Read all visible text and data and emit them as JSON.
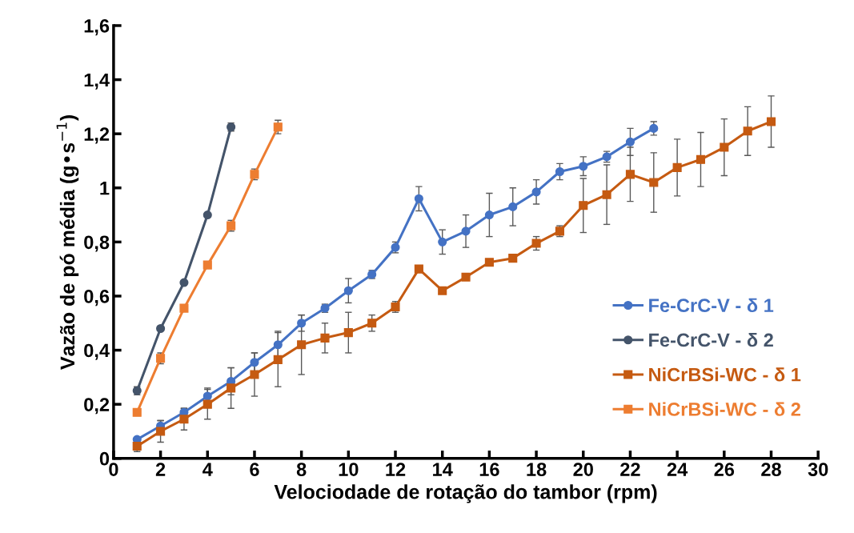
{
  "chart_data": {
    "type": "line",
    "xlabel": "Velociodade de rotação do tambor (rpm)",
    "ylabel": "Vazão de pó média (g•s$^{−1}$)",
    "xlim": [
      0,
      30
    ],
    "xticks": [
      0,
      2,
      4,
      6,
      8,
      10,
      12,
      14,
      16,
      18,
      20,
      22,
      24,
      26,
      28,
      30
    ],
    "ylim": [
      0,
      1.6
    ],
    "yticks": [
      0,
      {
        "value": 0.2,
        "label": "0,2"
      },
      {
        "value": 0.4,
        "label": "0,4"
      },
      {
        "value": 0.6,
        "label": "0,6"
      },
      {
        "value": 0.8,
        "label": "0,8"
      },
      1,
      {
        "value": 1.2,
        "label": "1,2"
      },
      {
        "value": 1.4,
        "label": "1,4"
      },
      {
        "value": 1.6,
        "label": "1,6"
      }
    ],
    "grid": false,
    "legend": "bottom right",
    "series": [
      {
        "name": "Fe-CrC-V - δ 1",
        "color": "#4472c4",
        "marker": "circle",
        "x": [
          1,
          2,
          3,
          4,
          5,
          6,
          7,
          8,
          9,
          10,
          11,
          12,
          13,
          14,
          15,
          16,
          17,
          18,
          19,
          20,
          21,
          22,
          23
        ],
        "values": [
          0.07,
          0.12,
          0.17,
          0.23,
          0.285,
          0.355,
          0.42,
          0.5,
          0.555,
          0.62,
          0.68,
          0.78,
          0.96,
          0.8,
          0.84,
          0.9,
          0.93,
          0.985,
          1.06,
          1.08,
          1.115,
          1.17,
          1.22
        ],
        "errors": [
          null,
          0.02,
          0.015,
          0.03,
          0.05,
          0.035,
          0.05,
          0.03,
          0.015,
          0.045,
          0.015,
          0.02,
          0.045,
          0.045,
          0.06,
          0.08,
          0.07,
          0.045,
          0.03,
          0.035,
          0.02,
          0.05,
          0.025
        ]
      },
      {
        "name": "Fe-CrC-V - δ 2",
        "color": "#44546a",
        "marker": "circle",
        "x": [
          1,
          2,
          3,
          4,
          5
        ],
        "values": [
          0.25,
          0.48,
          0.65,
          0.9,
          1.225
        ],
        "errors": [
          0.015,
          null,
          null,
          null,
          0.015
        ]
      },
      {
        "name": "NiCrBSi-WC - δ 1",
        "color": "#c55a11",
        "marker": "square",
        "x": [
          1,
          2,
          3,
          4,
          5,
          6,
          7,
          8,
          9,
          10,
          11,
          12,
          13,
          14,
          15,
          16,
          17,
          18,
          19,
          20,
          21,
          22,
          23,
          24,
          25,
          26,
          27,
          28
        ],
        "values": [
          0.045,
          0.1,
          0.145,
          0.2,
          0.26,
          0.31,
          0.365,
          0.42,
          0.445,
          0.465,
          0.5,
          0.56,
          0.7,
          0.62,
          0.67,
          0.725,
          0.74,
          0.795,
          0.84,
          0.935,
          0.975,
          1.05,
          1.02,
          1.075,
          1.105,
          1.15,
          1.21,
          1.245
        ],
        "errors": [
          0.02,
          0.04,
          0.04,
          0.055,
          0.075,
          0.08,
          0.1,
          0.11,
          0.055,
          0.075,
          0.03,
          0.02,
          null,
          null,
          null,
          null,
          null,
          0.025,
          0.02,
          0.1,
          0.11,
          0.1,
          0.11,
          0.105,
          0.1,
          0.105,
          0.09,
          0.095
        ]
      },
      {
        "name": "NiCrBSi-WC - δ 2",
        "color": "#ed7d31",
        "marker": "square",
        "x": [
          1,
          2,
          3,
          4,
          5,
          6,
          7
        ],
        "values": [
          0.17,
          0.37,
          0.555,
          0.715,
          0.86,
          1.05,
          1.225
        ],
        "errors": [
          null,
          0.02,
          null,
          null,
          0.02,
          0.02,
          0.025
        ]
      }
    ]
  }
}
